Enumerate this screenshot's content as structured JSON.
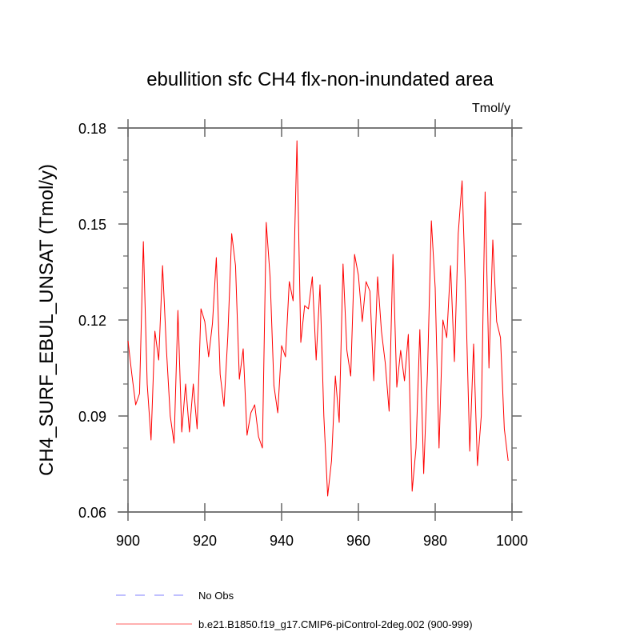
{
  "chart_data": {
    "type": "line",
    "title": "ebullition sfc CH4 flx-non-inundated area",
    "units_label": "Tmol/y",
    "xlabel": "",
    "ylabel": "CH4_SURF_EBUL_UNSAT  (Tmol/y)",
    "xlim": [
      900,
      1000
    ],
    "ylim": [
      0.06,
      0.18
    ],
    "x_ticks": [
      900,
      920,
      940,
      960,
      980,
      1000
    ],
    "x_tick_labels": [
      "900",
      "920",
      "940",
      "960",
      "980",
      "1000"
    ],
    "y_ticks": [
      0.06,
      0.09,
      0.12,
      0.15,
      0.18
    ],
    "y_tick_labels": [
      "0.06",
      "0.09",
      "0.12",
      "0.15",
      "0.18"
    ],
    "y_minor_step": 0.01,
    "x_minor_step": 5,
    "grid": false,
    "legend_position": "bottom-left",
    "series": [
      {
        "name": "No Obs",
        "color": "#8080ff",
        "dash": true,
        "x": [],
        "values": []
      },
      {
        "name": "b.e21.B1850.f19_g17.CMIP6-piControl-2deg.002 (900-999)",
        "color": "#ff0000",
        "dash": false,
        "x_start": 900,
        "x_step": 1,
        "values": [
          0.1135,
          0.103,
          0.0935,
          0.097,
          0.1445,
          0.1,
          0.0825,
          0.1165,
          0.1075,
          0.137,
          0.111,
          0.09,
          0.0815,
          0.123,
          0.085,
          0.1,
          0.085,
          0.1,
          0.086,
          0.1235,
          0.1195,
          0.1085,
          0.119,
          0.1395,
          0.103,
          0.093,
          0.115,
          0.147,
          0.137,
          0.1015,
          0.111,
          0.084,
          0.091,
          0.0935,
          0.0835,
          0.08,
          0.1505,
          0.1335,
          0.0995,
          0.091,
          0.112,
          0.1085,
          0.132,
          0.126,
          0.176,
          0.113,
          0.1245,
          0.1235,
          0.1335,
          0.1075,
          0.131,
          0.09,
          0.065,
          0.076,
          0.1025,
          0.088,
          0.1375,
          0.1105,
          0.1025,
          0.1405,
          0.134,
          0.1195,
          0.132,
          0.129,
          0.101,
          0.1335,
          0.1165,
          0.1065,
          0.0915,
          0.1405,
          0.099,
          0.1105,
          0.101,
          0.1155,
          0.0665,
          0.08,
          0.117,
          0.072,
          0.104,
          0.151,
          0.13,
          0.08,
          0.12,
          0.1145,
          0.137,
          0.107,
          0.147,
          0.1635,
          0.125,
          0.079,
          0.1125,
          0.0745,
          0.09,
          0.16,
          0.105,
          0.145,
          0.1195,
          0.1145,
          0.086,
          0.076
        ]
      }
    ]
  }
}
